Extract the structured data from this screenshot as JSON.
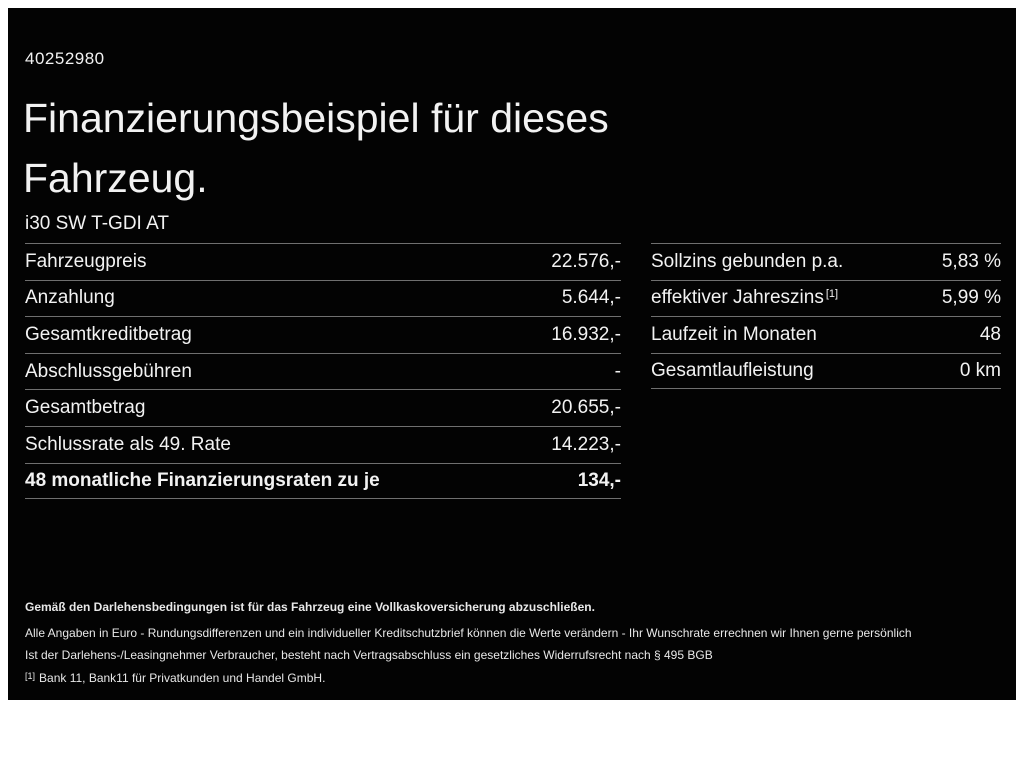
{
  "header": {
    "id_number": "40252980",
    "title_line1": "Finanzierungsbeispiel für dieses",
    "title_line2": "Fahrzeug.",
    "model": "i30 SW T-GDI AT"
  },
  "left_table": {
    "rows": [
      {
        "label": "Fahrzeugpreis",
        "value": "22.576,-"
      },
      {
        "label": "Anzahlung",
        "value": "5.644,-"
      },
      {
        "label": "Gesamtkreditbetrag",
        "value": "16.932,-"
      },
      {
        "label": "Abschlussgebühren",
        "value": "-"
      },
      {
        "label": "Gesamtbetrag",
        "value": "20.655,-"
      },
      {
        "label": "Schlussrate als 49. Rate",
        "value": "14.223,-"
      },
      {
        "label": "48 monatliche Finanzierungsraten zu je",
        "value": "134,-"
      }
    ]
  },
  "right_table": {
    "rows": [
      {
        "label": "Sollzins gebunden p.a.",
        "value": "5,83 %"
      },
      {
        "label": "effektiver Jahreszins",
        "label_sup": "[1]",
        "value": "5,99 %"
      },
      {
        "label": "Laufzeit in Monaten",
        "value": "48"
      },
      {
        "label": "Gesamtlaufleistung",
        "value": "0 km"
      }
    ]
  },
  "footnotes": {
    "insurance_note": "Gemäß den Darlehensbedingungen ist für das Fahrzeug eine Vollkaskoversicherung abzuschließen.",
    "disclaimer1": "Alle Angaben in Euro - Rundungsdifferenzen und ein individueller Kreditschutzbrief können die Werte verändern - Ihr Wunschrate errechnen wir Ihnen gerne persönlich",
    "disclaimer2": "Ist der Darlehens-/Leasingnehmer Verbraucher, besteht nach Vertragsabschluss ein gesetzliches Widerrufsrecht nach § 495 BGB",
    "bank_ref_marker": "[1]",
    "bank_ref": "Bank 11, Bank11 für Privatkunden und Handel GmbH."
  },
  "colors": {
    "background": "#030303",
    "text": "#f2f2f2",
    "divider": "#6f6f6f",
    "frame": "#ffffff"
  }
}
